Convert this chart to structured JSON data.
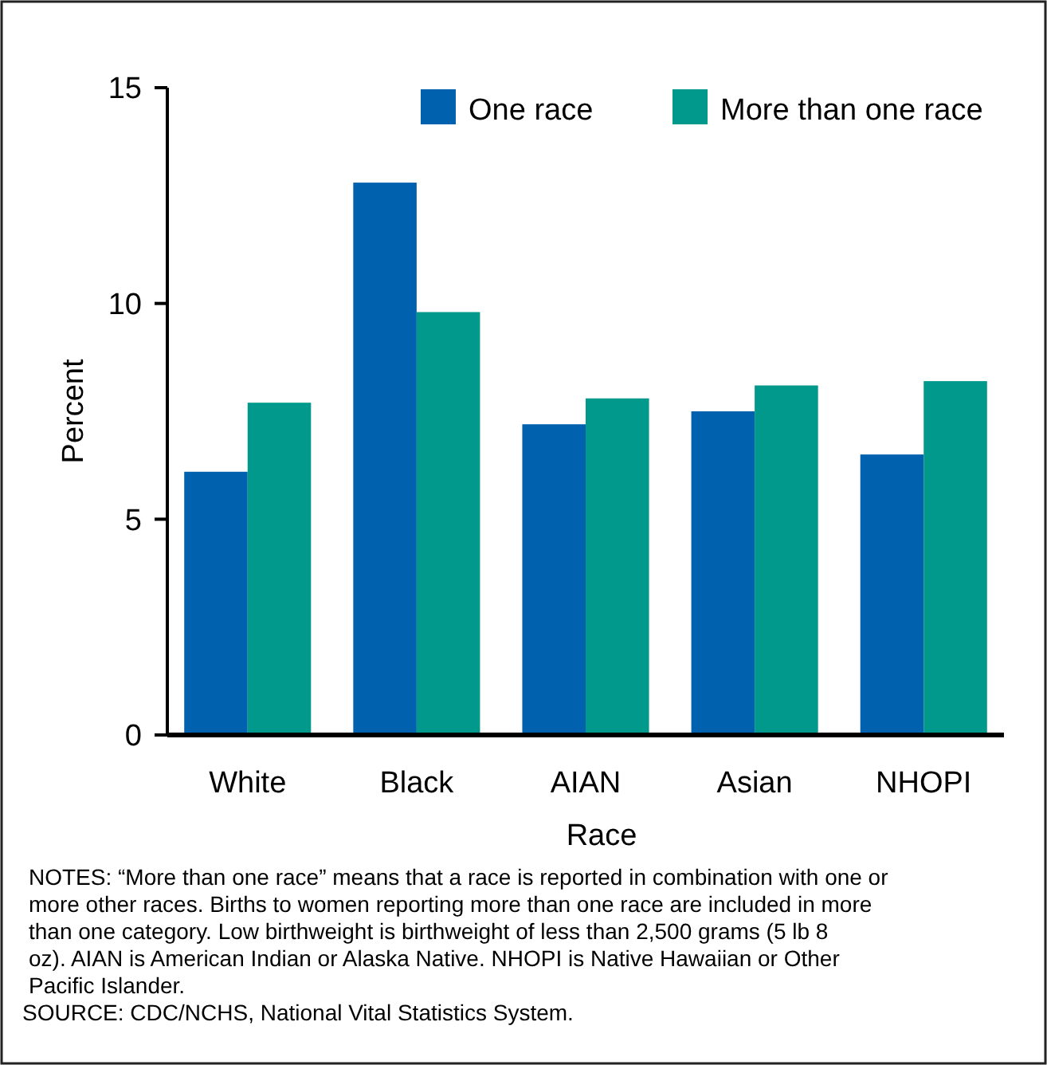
{
  "chart_data": {
    "type": "bar",
    "xlabel": "Race",
    "ylabel": "Percent",
    "categories": [
      "White",
      "Black",
      "AIAN",
      "Asian",
      "NHOPI"
    ],
    "series": [
      {
        "name": "One race",
        "color": "#0061ae",
        "values": [
          6.1,
          12.8,
          7.2,
          7.5,
          6.5
        ]
      },
      {
        "name": "More than one race",
        "color": "#00998c",
        "values": [
          7.7,
          9.8,
          7.8,
          8.1,
          8.2
        ]
      }
    ],
    "ylim": [
      0,
      15
    ],
    "yticks": [
      0,
      5,
      10,
      15
    ],
    "grid": false,
    "legend": "top right",
    "annotations": [
      "NOTES: “More than one race” means that a race is reported in combination with one or more other races. Births to women reporting more than one race are included in more than one category. Low birthweight is birthweight of less than 2,500 grams (5 lb 8 oz). AIAN is American Indian or Alaska Native. NHOPI is Native Hawaiian or Other Pacific Islander.",
      "SOURCE: CDC/NCHS, National Vital Statistics System."
    ]
  }
}
